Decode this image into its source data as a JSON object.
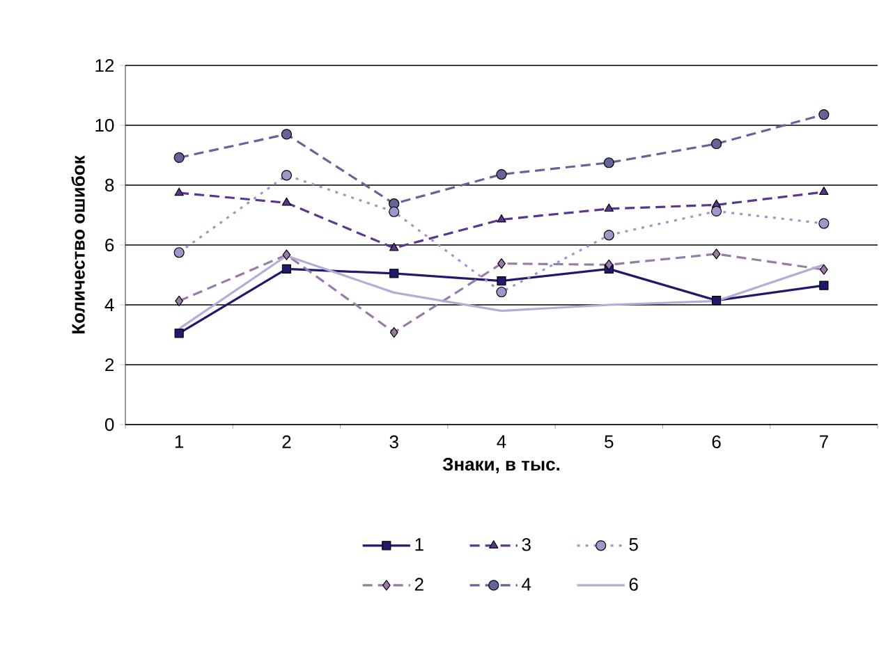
{
  "chart_data": {
    "type": "line",
    "xlabel": "Знаки, в тыс.",
    "ylabel": "Количество ошибок",
    "categories": [
      "1",
      "2",
      "3",
      "4",
      "5",
      "6",
      "7"
    ],
    "ylim": [
      0,
      12
    ],
    "yticks": [
      0,
      2,
      4,
      6,
      8,
      10,
      12
    ],
    "grid": "y",
    "legend": "bottom",
    "series": [
      {
        "name": "1",
        "color": "#1f1a6e",
        "marker": "square",
        "line_style": "solid",
        "values": [
          3.05,
          5.2,
          5.05,
          4.8,
          5.2,
          4.15,
          4.65
        ]
      },
      {
        "name": "2",
        "color": "#9a7aa8",
        "marker": "diamond",
        "line_style": "dashed",
        "values": [
          4.13,
          5.67,
          3.08,
          5.38,
          5.34,
          5.7,
          5.18
        ]
      },
      {
        "name": "3",
        "color": "#5b3591",
        "marker": "triangle",
        "line_style": "dashed",
        "values": [
          7.74,
          7.41,
          5.9,
          6.85,
          7.21,
          7.34,
          7.77
        ]
      },
      {
        "name": "4",
        "color": "#65649a",
        "marker": "circle",
        "line_style": "dashed",
        "values": [
          8.92,
          9.7,
          7.38,
          8.36,
          8.75,
          9.38,
          10.36
        ]
      },
      {
        "name": "5",
        "color": "#9f96cc",
        "marker": "circle",
        "line_style": "dotted",
        "values": [
          5.75,
          8.33,
          7.11,
          4.43,
          6.33,
          7.13,
          6.72
        ]
      },
      {
        "name": "6",
        "color": "#b3aed8",
        "marker": "none",
        "line_style": "solid",
        "values": [
          3.2,
          5.64,
          4.41,
          3.8,
          4.0,
          4.13,
          5.34
        ]
      }
    ]
  }
}
